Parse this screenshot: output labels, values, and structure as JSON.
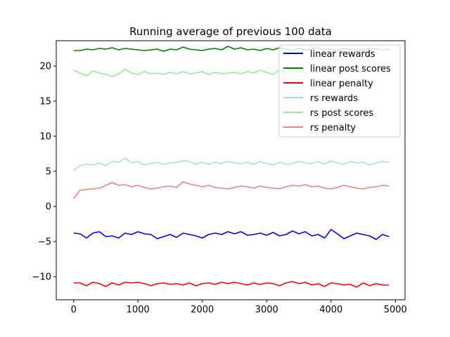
{
  "chart_data": {
    "type": "line",
    "title": "Running average of previous 100 data",
    "xlabel": "",
    "ylabel": "",
    "xlim": [
      -270,
      5150
    ],
    "ylim": [
      -13.3,
      23.6
    ],
    "x_ticks": [
      0,
      1000,
      2000,
      3000,
      4000,
      5000
    ],
    "x_tick_labels": [
      "0",
      "1000",
      "2000",
      "3000",
      "4000",
      "5000"
    ],
    "y_ticks": [
      -10,
      -5,
      0,
      5,
      10,
      15,
      20
    ],
    "y_tick_labels": [
      "−10",
      "−5",
      "0",
      "5",
      "10",
      "15",
      "20"
    ],
    "grid": false,
    "legend_position": "top-right",
    "x": [
      0,
      100,
      200,
      300,
      400,
      500,
      600,
      700,
      800,
      900,
      1000,
      1100,
      1200,
      1300,
      1400,
      1500,
      1600,
      1700,
      1800,
      1900,
      2000,
      2100,
      2200,
      2300,
      2400,
      2500,
      2600,
      2700,
      2800,
      2900,
      3000,
      3100,
      3200,
      3300,
      3400,
      3500,
      3600,
      3700,
      3800,
      3900,
      4000,
      4100,
      4200,
      4300,
      4400,
      4500,
      4600,
      4700,
      4800,
      4900
    ],
    "series": [
      {
        "name": "linear rewards",
        "color": "#0000ff",
        "values": [
          -3.8,
          -3.9,
          -4.5,
          -3.8,
          -3.6,
          -4.3,
          -4.2,
          -4.5,
          -3.8,
          -4.0,
          -3.6,
          -3.9,
          -4.0,
          -4.6,
          -4.3,
          -4.0,
          -4.4,
          -3.8,
          -4.0,
          -4.2,
          -4.5,
          -4.0,
          -3.8,
          -4.0,
          -3.6,
          -3.9,
          -3.6,
          -4.1,
          -4.0,
          -3.8,
          -4.1,
          -3.7,
          -4.2,
          -4.0,
          -3.5,
          -3.9,
          -3.6,
          -4.2,
          -4.0,
          -4.5,
          -3.3,
          -3.9,
          -4.6,
          -4.2,
          -3.8,
          -4.0,
          -4.2,
          -4.7,
          -4.0,
          -4.3
        ]
      },
      {
        "name": "linear post scores",
        "color": "#008000",
        "values": [
          22.2,
          22.2,
          22.4,
          22.3,
          22.5,
          22.4,
          22.6,
          22.3,
          22.5,
          22.4,
          22.3,
          22.2,
          22.3,
          22.4,
          22.1,
          22.4,
          22.3,
          22.7,
          22.4,
          22.3,
          22.2,
          22.4,
          22.5,
          22.3,
          22.8,
          22.4,
          22.6,
          22.3,
          22.4,
          22.2,
          22.5,
          22.3,
          22.6,
          22.4,
          22.2,
          22.5,
          22.3,
          22.4,
          22.6,
          22.3,
          22.4,
          22.2,
          22.5,
          22.3,
          22.4,
          22.3,
          22.5,
          22.4,
          22.3,
          22.4
        ]
      },
      {
        "name": "linear penalty",
        "color": "#ff0000",
        "values": [
          -10.9,
          -10.9,
          -11.3,
          -10.8,
          -11.0,
          -11.4,
          -10.9,
          -11.2,
          -10.8,
          -10.9,
          -10.8,
          -11.0,
          -11.3,
          -11.0,
          -10.9,
          -11.1,
          -11.0,
          -11.2,
          -10.9,
          -11.3,
          -11.0,
          -10.9,
          -11.1,
          -10.8,
          -11.0,
          -10.8,
          -11.0,
          -11.2,
          -10.9,
          -11.1,
          -10.9,
          -11.0,
          -11.3,
          -10.9,
          -10.7,
          -11.0,
          -10.8,
          -11.2,
          -11.0,
          -11.4,
          -10.9,
          -11.0,
          -11.2,
          -11.1,
          -11.5,
          -10.9,
          -11.3,
          -11.0,
          -11.2,
          -11.2
        ]
      },
      {
        "name": "rs rewards",
        "color": "#add8e6",
        "values": [
          5.1,
          5.8,
          6.0,
          5.9,
          6.2,
          5.8,
          6.4,
          6.3,
          6.9,
          6.2,
          6.4,
          5.9,
          6.1,
          6.3,
          6.0,
          6.2,
          6.3,
          6.5,
          6.4,
          6.0,
          6.3,
          6.0,
          6.3,
          6.1,
          6.4,
          6.2,
          6.1,
          6.3,
          6.0,
          6.4,
          6.1,
          5.9,
          6.3,
          6.0,
          6.1,
          6.4,
          6.2,
          6.1,
          6.4,
          6.0,
          6.5,
          6.2,
          6.0,
          6.4,
          6.2,
          6.3,
          5.9,
          6.2,
          6.4,
          6.3
        ]
      },
      {
        "name": "rs post scores",
        "color": "#90ee90",
        "values": [
          19.4,
          19.0,
          18.6,
          19.3,
          19.0,
          18.8,
          18.5,
          18.9,
          19.5,
          19.0,
          18.8,
          19.2,
          18.9,
          19.0,
          18.8,
          19.1,
          18.9,
          19.2,
          18.9,
          19.0,
          19.2,
          18.8,
          19.1,
          18.9,
          19.0,
          19.1,
          18.9,
          19.2,
          19.0,
          19.4,
          19.1,
          18.8,
          19.4,
          19.0,
          19.5,
          19.2,
          19.1,
          18.9,
          19.3,
          19.0,
          19.2,
          18.9,
          19.3,
          19.0,
          19.4,
          19.0,
          19.2,
          19.5,
          19.1,
          19.3
        ]
      },
      {
        "name": "rs penalty",
        "color": "#f08080",
        "values": [
          1.1,
          2.3,
          2.4,
          2.5,
          2.6,
          3.0,
          3.4,
          3.0,
          3.1,
          2.8,
          3.0,
          2.7,
          2.5,
          2.6,
          2.8,
          2.9,
          2.7,
          3.5,
          3.2,
          3.0,
          2.8,
          3.0,
          2.7,
          2.6,
          2.5,
          2.7,
          2.9,
          2.8,
          2.6,
          2.9,
          2.7,
          2.6,
          2.5,
          2.8,
          3.0,
          2.9,
          3.1,
          2.8,
          2.9,
          2.6,
          2.5,
          2.7,
          3.0,
          2.8,
          2.6,
          2.5,
          2.7,
          2.8,
          3.0,
          2.9
        ]
      }
    ]
  }
}
